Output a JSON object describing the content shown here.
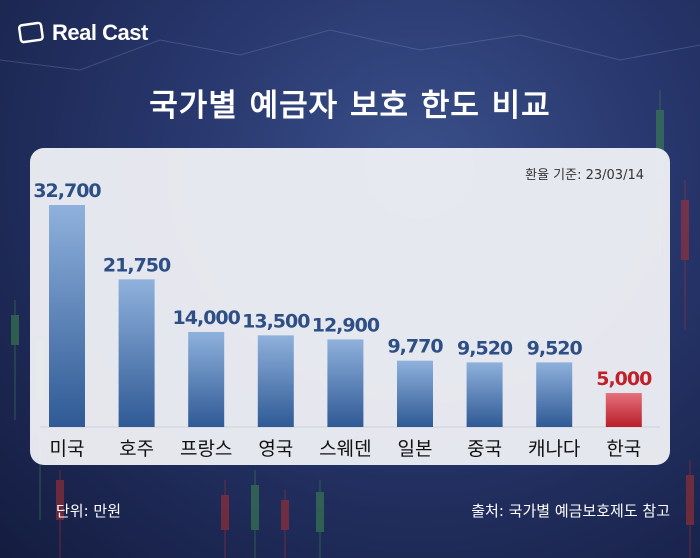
{
  "brand": {
    "name": "Real Cast"
  },
  "title": "국가별 예금자 보호 한도 비교",
  "note": "환율 기준: 23/03/14",
  "footer": {
    "unit": "단위: 만원",
    "source": "출처: 국가별 예금보호제도 참고"
  },
  "colors": {
    "bar_top": "#8fb1dc",
    "bar_bottom": "#2f5a95",
    "highlight_top": "#e5707a",
    "highlight_bottom": "#b81e2a",
    "label": "#2d4f86",
    "highlight_label": "#c0202a"
  },
  "chart_data": {
    "type": "bar",
    "title": "국가별 예금자 보호 한도 비교",
    "categories": [
      "미국",
      "호주",
      "프랑스",
      "영국",
      "스웨덴",
      "일본",
      "중국",
      "캐나다",
      "한국"
    ],
    "values": [
      32700,
      21750,
      14000,
      13500,
      12900,
      9770,
      9520,
      9520,
      5000
    ],
    "data_labels": [
      "32,700",
      "21,750",
      "14,000",
      "13,500",
      "12,900",
      "9,770",
      "9,520",
      "9,520",
      "5,000"
    ],
    "highlight": "한국",
    "unit": "만원",
    "grid": false,
    "legend": "none"
  }
}
